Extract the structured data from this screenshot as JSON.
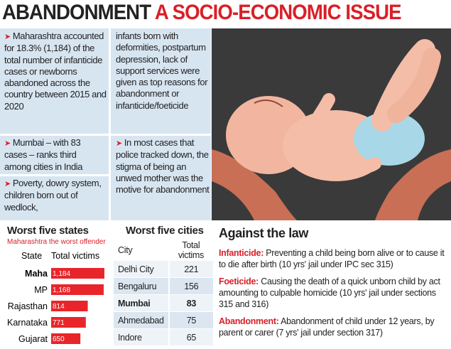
{
  "header": {
    "title": "ABANDONMENT",
    "subtitle": "A SOCIO-ECONOMIC ISSUE"
  },
  "bullets": [
    {
      "text": "Maharashtra accounted for 18.3% (1,184) of the total number of infanticide cases or newborns abandoned across the country between 2015 and 2020"
    },
    {
      "text": "Mumbai – with 83 cases – ranks third among cities in India"
    },
    {
      "text": "Poverty, dowry system, children born out of wedlock,",
      "continued": "infants born with deformities, postpartum depression, lack of support services were given as top reasons for abandonment or infanticide/foeticide"
    },
    {
      "text": "In most cases that police tracked down, the stigma of being an unwed mother was the motive for abandonment"
    }
  ],
  "chart_data": {
    "type": "bar",
    "orientation": "horizontal",
    "title": "Worst five states",
    "subtitle": "Maharashtra the worst offender",
    "category_header": "State",
    "value_header": "Total victims",
    "categories": [
      "Maha",
      "MP",
      "Rajasthan",
      "Karnataka",
      "Gujarat"
    ],
    "values": [
      1184,
      1168,
      814,
      771,
      650
    ],
    "value_labels": [
      "1,184",
      "1,168",
      "814",
      "771",
      "650"
    ],
    "color": "#e8252b"
  },
  "table": {
    "title": "Worst five cities",
    "columns": [
      "City",
      "Total victims"
    ],
    "rows": [
      [
        "Delhi City",
        221
      ],
      [
        "Bengaluru",
        156
      ],
      [
        "Mumbai",
        83
      ],
      [
        "Ahmedabad",
        75
      ],
      [
        "Indore",
        65
      ]
    ]
  },
  "law": {
    "title": "Against the law",
    "items": [
      {
        "term": "Infanticide:",
        "text": "Preventing a child being born alive or to cause it to die after birth (10 yrs' jail under IPC sec 315)"
      },
      {
        "term": "Foeticide:",
        "text": "Causing the death of a quick unborn child by act amounting to culpable homicide (10 yrs' jail under sections 315 and 316)"
      },
      {
        "term": "Abandonment:",
        "text": "Abandonment of child under 12 years, by parent or carer (7 yrs' jail under section 317)"
      }
    ]
  }
}
